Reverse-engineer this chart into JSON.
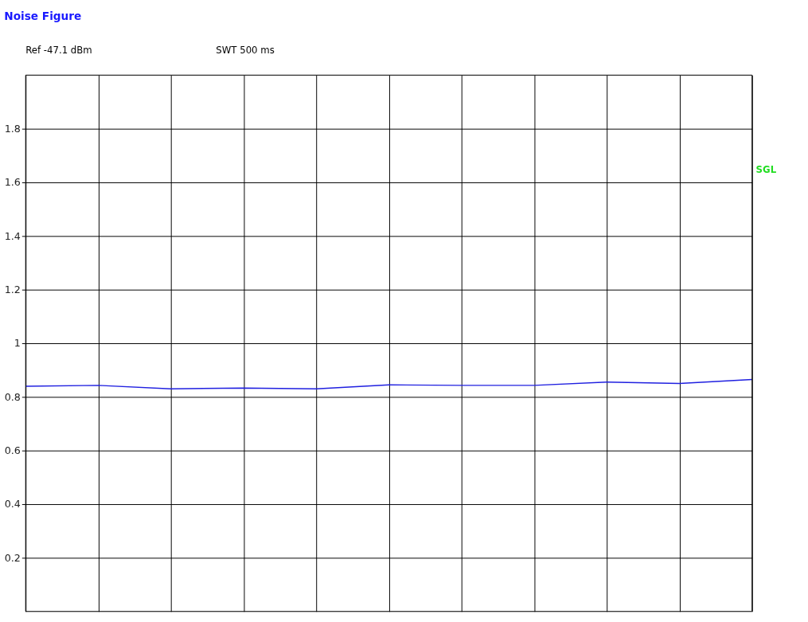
{
  "chart_data": {
    "type": "line",
    "title": "Noise Figure",
    "annotations": [
      "Ref     -47.1 dBm",
      "SWT    500 ms",
      "SGL"
    ],
    "categories": [
      null,
      null,
      null,
      null,
      null,
      null,
      null,
      null,
      null,
      null,
      null
    ],
    "series": [
      {
        "color": "#2020e0",
        "values": [
          0.84,
          0.843,
          0.83,
          0.833,
          0.83,
          0.845,
          0.843,
          0.843,
          0.855,
          0.85,
          0.865
        ]
      }
    ],
    "ylim": [
      0,
      2
    ],
    "yticks": [
      0.2,
      0.4,
      0.6,
      0.8,
      1,
      1.2,
      1.4,
      1.6,
      1.8
    ],
    "grid": true,
    "marker": "none",
    "line_style": "solid"
  }
}
